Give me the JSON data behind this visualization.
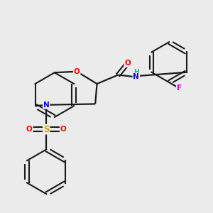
{
  "bg_color": "#ebebeb",
  "bond_color": "#1a1a1a",
  "atom_colors": {
    "O": "#ff0000",
    "N": "#0000ff",
    "S": "#ccaa00",
    "F": "#cc00cc",
    "H": "#2aa0a0",
    "C": "#1a1a1a"
  },
  "figsize": [
    3.0,
    3.0
  ],
  "dpi": 100
}
